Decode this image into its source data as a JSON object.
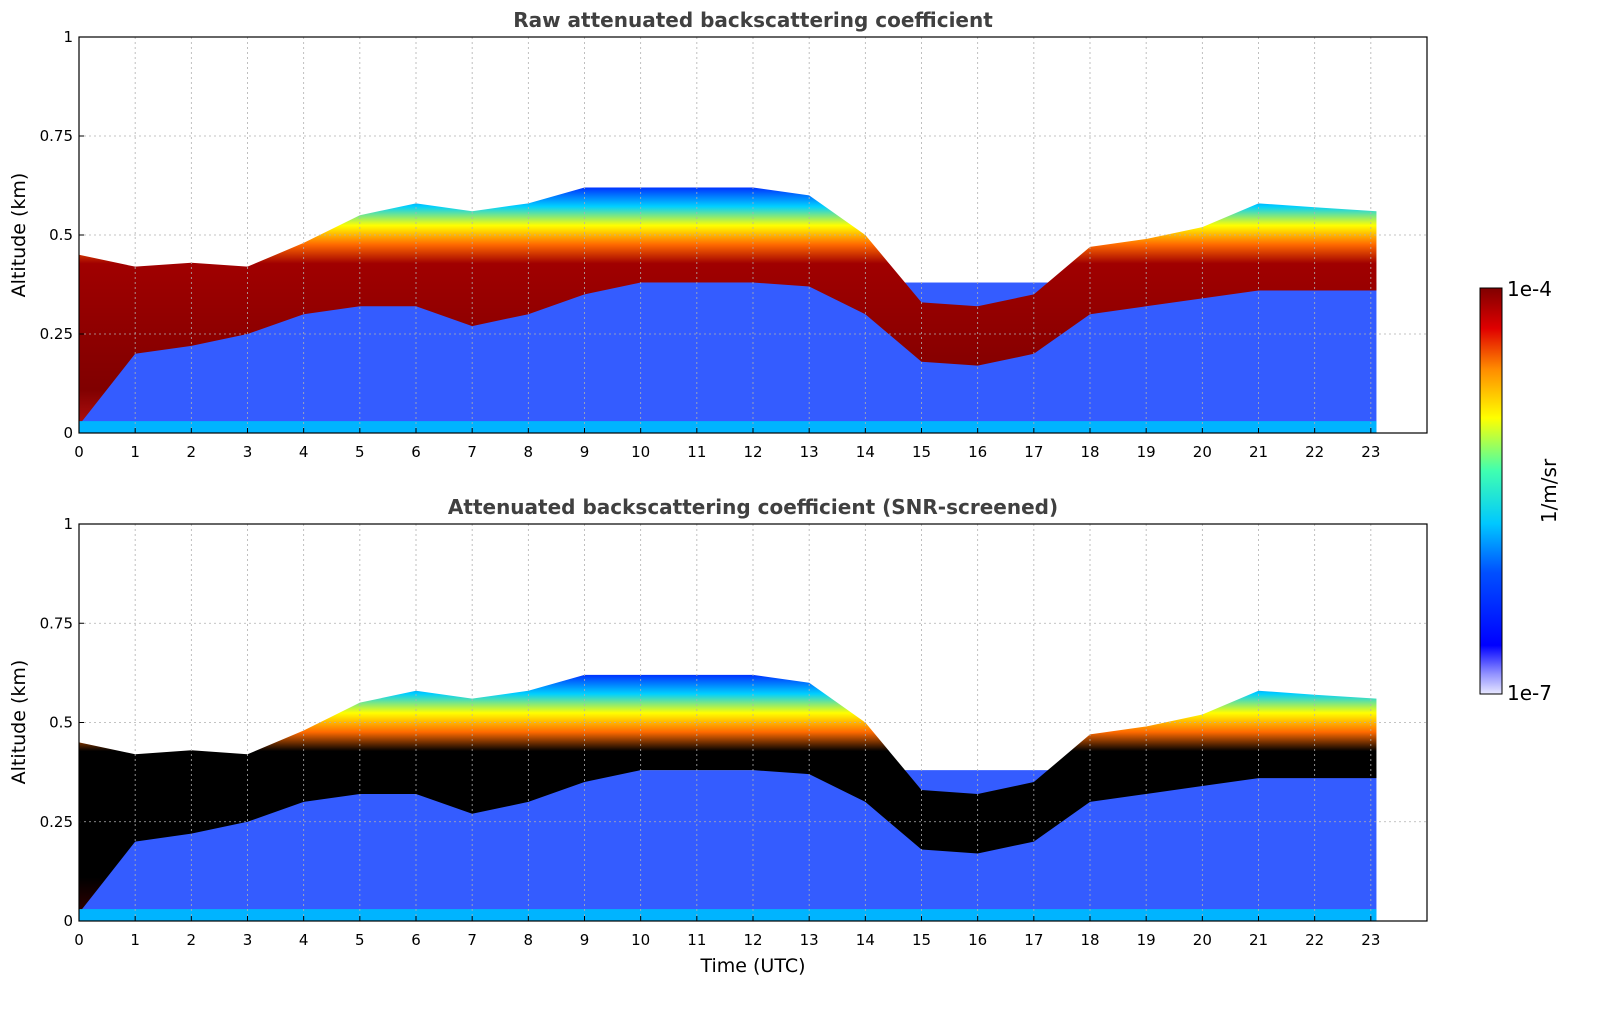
{
  "chart_data": [
    {
      "type": "heatmap",
      "title": "Raw attenuated backscattering coefficient",
      "ylabel": "Altitude (km)",
      "xlabel": "",
      "xlim": [
        0,
        24
      ],
      "ylim": [
        0,
        1
      ],
      "x_ticks": [
        "0",
        "1",
        "2",
        "3",
        "4",
        "5",
        "6",
        "7",
        "8",
        "9",
        "10",
        "11",
        "12",
        "13",
        "14",
        "15",
        "16",
        "17",
        "18",
        "19",
        "20",
        "21",
        "22",
        "23"
      ],
      "y_ticks": [
        "0",
        "0.25",
        "0.5",
        "0.75",
        "1"
      ],
      "grid": true,
      "layer_time_utc": [
        0,
        1,
        2,
        3,
        4,
        5,
        6,
        7,
        8,
        9,
        10,
        11,
        12,
        13,
        14,
        15,
        16,
        17,
        18,
        19,
        20,
        21,
        22,
        23.1
      ],
      "layer_top_km": [
        0.45,
        0.42,
        0.43,
        0.42,
        0.48,
        0.55,
        0.58,
        0.56,
        0.58,
        0.62,
        0.62,
        0.62,
        0.62,
        0.6,
        0.5,
        0.33,
        0.32,
        0.35,
        0.47,
        0.49,
        0.52,
        0.58,
        0.57,
        0.56
      ],
      "layer_base_km": [
        0.02,
        0.2,
        0.22,
        0.25,
        0.3,
        0.32,
        0.32,
        0.27,
        0.3,
        0.35,
        0.38,
        0.38,
        0.38,
        0.37,
        0.3,
        0.18,
        0.17,
        0.2,
        0.3,
        0.32,
        0.34,
        0.36,
        0.36,
        0.36
      ]
    },
    {
      "type": "heatmap",
      "title": "Attenuated backscattering coefficient (SNR-screened)",
      "ylabel": "Altitude (km)",
      "xlabel": "Time (UTC)",
      "xlim": [
        0,
        24
      ],
      "ylim": [
        0,
        1
      ],
      "x_ticks": [
        "0",
        "1",
        "2",
        "3",
        "4",
        "5",
        "6",
        "7",
        "8",
        "9",
        "10",
        "11",
        "12",
        "13",
        "14",
        "15",
        "16",
        "17",
        "18",
        "19",
        "20",
        "21",
        "22",
        "23"
      ],
      "y_ticks": [
        "0",
        "0.25",
        "0.5",
        "0.75",
        "1"
      ],
      "grid": true,
      "layer_time_utc": [
        0,
        1,
        2,
        3,
        4,
        5,
        6,
        7,
        8,
        9,
        10,
        11,
        12,
        13,
        14,
        15,
        16,
        17,
        18,
        19,
        20,
        21,
        22,
        23.1
      ],
      "layer_top_km": [
        0.45,
        0.42,
        0.43,
        0.42,
        0.48,
        0.55,
        0.58,
        0.56,
        0.58,
        0.62,
        0.62,
        0.62,
        0.62,
        0.6,
        0.5,
        0.33,
        0.32,
        0.35,
        0.47,
        0.49,
        0.52,
        0.58,
        0.57,
        0.56
      ],
      "layer_base_km": [
        0.02,
        0.2,
        0.22,
        0.25,
        0.3,
        0.32,
        0.32,
        0.27,
        0.3,
        0.35,
        0.38,
        0.38,
        0.38,
        0.37,
        0.3,
        0.18,
        0.17,
        0.2,
        0.3,
        0.32,
        0.34,
        0.36,
        0.36,
        0.36
      ]
    }
  ],
  "colorbar": {
    "label": "1/m/sr",
    "max_label": "1e-4",
    "min_label": "1e-7",
    "scale": "log"
  },
  "colors": {
    "colormap_stops": [
      "#ffffff",
      "#0000ff",
      "#00c8ff",
      "#ffff00",
      "#ff6a00",
      "#d00000",
      "#800000"
    ],
    "saturated_screened": "#000000",
    "title_color": "#404040"
  }
}
